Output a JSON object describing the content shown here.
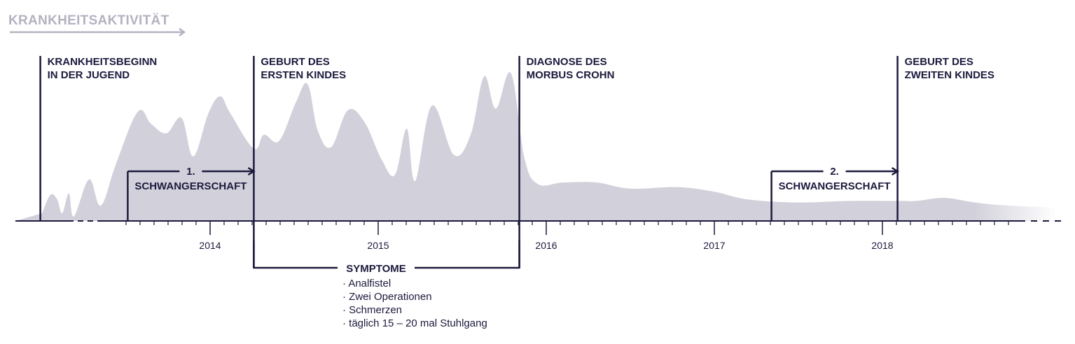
{
  "chart_data": {
    "type": "area",
    "title": "KRANKHEITSAKTIVITÄT",
    "x_axis": {
      "range": [
        2012.93,
        2019.03
      ],
      "ticks": [
        {
          "x": 2014,
          "label": "2014"
        },
        {
          "x": 2015,
          "label": "2015"
        },
        {
          "x": 2016,
          "label": "2016"
        },
        {
          "x": 2017,
          "label": "2017"
        },
        {
          "x": 2018,
          "label": "2018"
        }
      ],
      "minor_ticks_per_year": 12
    },
    "y_axis": {
      "range": [
        0,
        100
      ],
      "labels_shown": false
    },
    "grid": false,
    "series": [
      {
        "color": "#d2d1db",
        "points": [
          [
            2013.0,
            5
          ],
          [
            2013.05,
            17
          ],
          [
            2013.09,
            14
          ],
          [
            2013.12,
            5
          ],
          [
            2013.16,
            18
          ],
          [
            2013.19,
            3
          ],
          [
            2013.28,
            27
          ],
          [
            2013.35,
            10
          ],
          [
            2013.44,
            37
          ],
          [
            2013.57,
            71
          ],
          [
            2013.65,
            63
          ],
          [
            2013.74,
            57
          ],
          [
            2013.83,
            67
          ],
          [
            2013.9,
            42
          ],
          [
            2013.99,
            70
          ],
          [
            2014.06,
            81
          ],
          [
            2014.12,
            70
          ],
          [
            2014.26,
            47
          ],
          [
            2014.32,
            56
          ],
          [
            2014.41,
            52
          ],
          [
            2014.51,
            77
          ],
          [
            2014.58,
            89
          ],
          [
            2014.64,
            59
          ],
          [
            2014.72,
            48
          ],
          [
            2014.82,
            72
          ],
          [
            2014.92,
            64
          ],
          [
            2015.02,
            40
          ],
          [
            2015.1,
            30
          ],
          [
            2015.17,
            60
          ],
          [
            2015.22,
            26
          ],
          [
            2015.32,
            75
          ],
          [
            2015.45,
            43
          ],
          [
            2015.55,
            56
          ],
          [
            2015.63,
            94
          ],
          [
            2015.7,
            73
          ],
          [
            2015.79,
            96
          ],
          [
            2015.87,
            41
          ],
          [
            2015.95,
            24
          ],
          [
            2016.1,
            25
          ],
          [
            2016.3,
            25
          ],
          [
            2016.5,
            21
          ],
          [
            2016.78,
            22
          ],
          [
            2017.0,
            19
          ],
          [
            2017.2,
            14
          ],
          [
            2017.5,
            12
          ],
          [
            2017.8,
            13
          ],
          [
            2018.1,
            13
          ],
          [
            2018.2,
            13
          ],
          [
            2018.37,
            15
          ],
          [
            2018.55,
            12
          ],
          [
            2018.75,
            10
          ],
          [
            2018.95,
            9
          ],
          [
            2019.03,
            8
          ]
        ]
      }
    ],
    "events": [
      {
        "x": 2012.99,
        "label_lines": [
          "KRANKHEITSBEGINN",
          "IN DER JUGEND"
        ]
      },
      {
        "x": 2014.26,
        "label_lines": [
          "GEBURT DES",
          "ERSTEN KINDES"
        ]
      },
      {
        "x": 2015.84,
        "label_lines": [
          "DIAGNOSE DES",
          "MORBUS CROHN"
        ]
      },
      {
        "x": 2018.09,
        "label_lines": [
          "GEBURT DES",
          "ZWEITEN KINDES"
        ]
      }
    ],
    "pregnancies": [
      {
        "start": 2013.51,
        "end": 2014.26,
        "number": "1.",
        "label": "SCHWANGERSCHAFT"
      },
      {
        "start": 2017.34,
        "end": 2018.09,
        "number": "2.",
        "label": "SCHWANGERSCHAFT"
      }
    ],
    "symptoms": {
      "start": 2014.26,
      "end": 2015.84,
      "title": "SYMPTOME",
      "items": [
        "· Analfistel",
        "· Zwei Operationen",
        "· Schmerzen",
        "· täglich 15 – 20 mal Stuhlgang"
      ]
    },
    "colors": {
      "area": "#d2d1db",
      "ink": "#1c1a3d",
      "title": "#b4b2c0"
    }
  }
}
